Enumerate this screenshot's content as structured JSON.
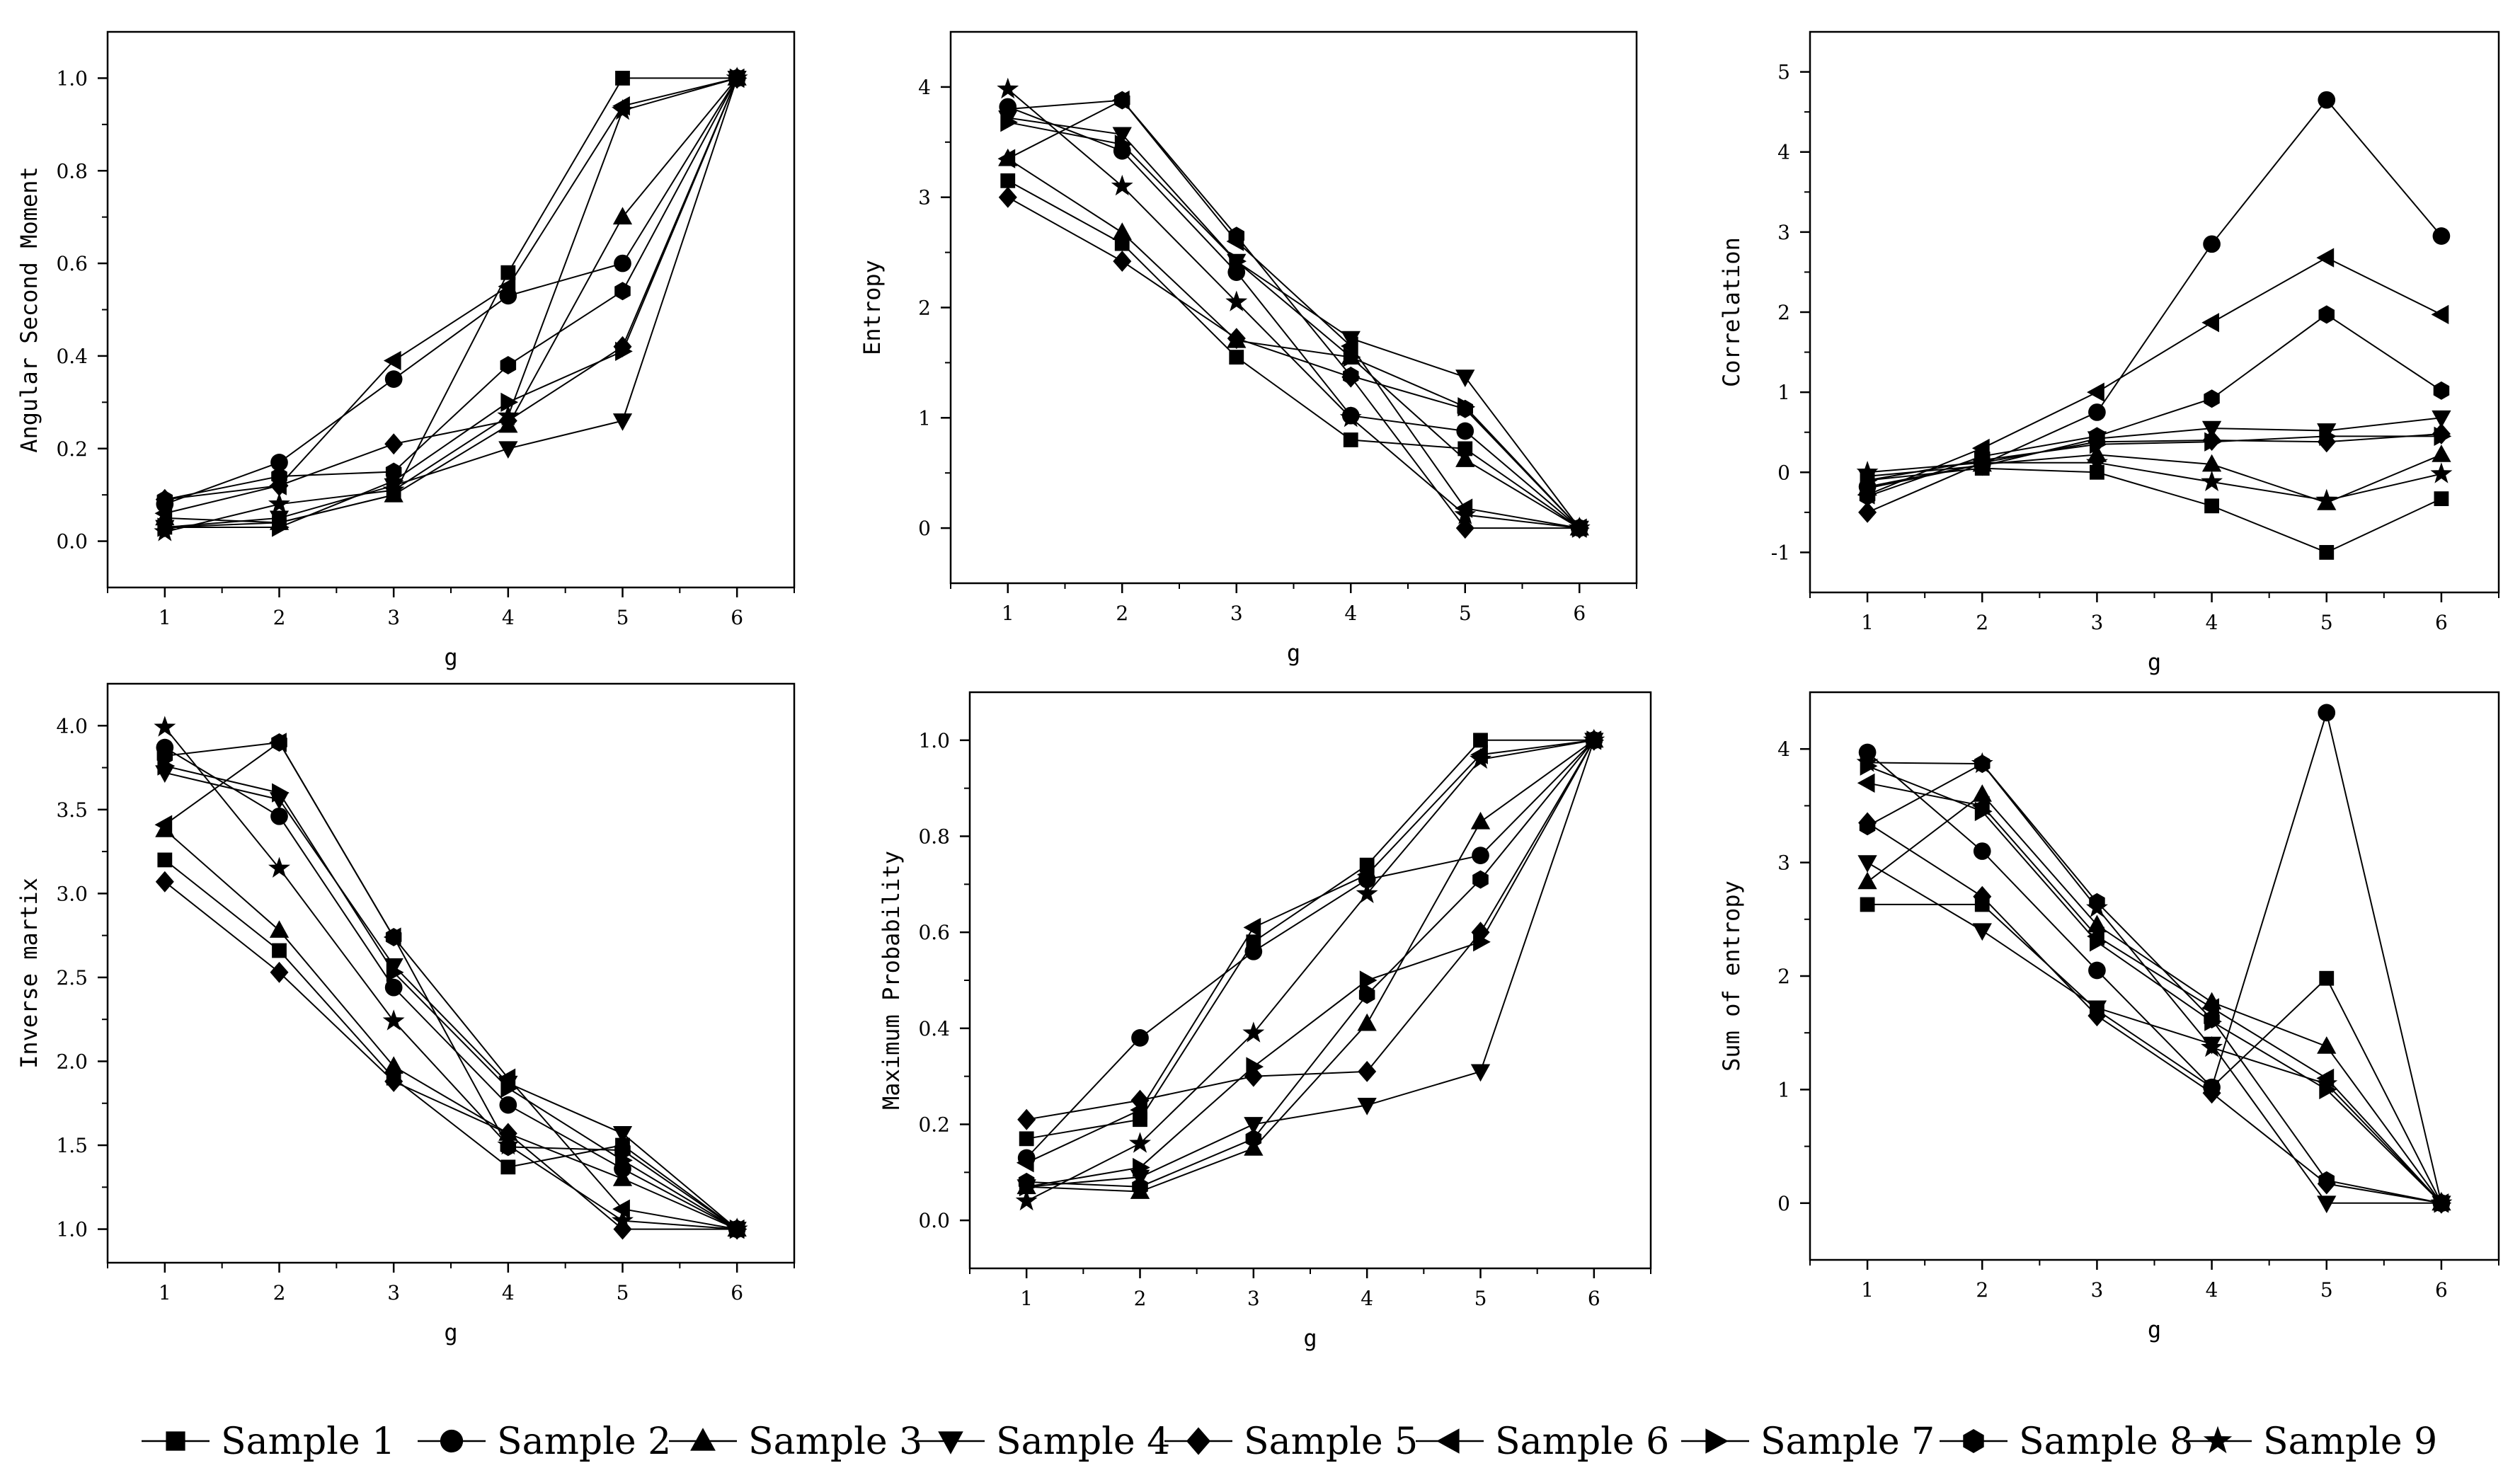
{
  "series_names": [
    "Sample 1",
    "Sample 2",
    "Sample 3",
    "Sample 4",
    "Sample 5",
    "Sample 6",
    "Sample 7",
    "Sample 8",
    "Sample 9"
  ],
  "markers": [
    "square",
    "circle",
    "triangle-up",
    "triangle-down",
    "diamond",
    "triangle-left",
    "triangle-right",
    "hexagon",
    "star"
  ],
  "colors": {
    "line": "#000000",
    "frame": "#000000",
    "background": "#ffffff"
  },
  "chart_data": [
    {
      "type": "line",
      "xlabel": "g",
      "ylabel": "Angular Second Moment",
      "x": [
        1,
        2,
        3,
        4,
        5,
        6
      ],
      "xlim": [
        0.5,
        6.5
      ],
      "ylim": [
        -0.1,
        1.1
      ],
      "yticks": [
        0.0,
        0.2,
        0.4,
        0.6,
        0.8,
        1.0
      ],
      "ytick_labels": [
        "0.0",
        "0.2",
        "0.4",
        "0.6",
        "0.8",
        "1.0"
      ],
      "series": [
        {
          "name": "Sample 1",
          "values": [
            0.03,
            0.04,
            0.1,
            0.58,
            1.0,
            1.0
          ]
        },
        {
          "name": "Sample 2",
          "values": [
            0.08,
            0.17,
            0.35,
            0.53,
            0.6,
            1.0
          ]
        },
        {
          "name": "Sample 3",
          "values": [
            0.05,
            0.04,
            0.1,
            0.25,
            0.7,
            1.0
          ]
        },
        {
          "name": "Sample 4",
          "values": [
            0.03,
            0.05,
            0.12,
            0.2,
            0.26,
            1.0
          ]
        },
        {
          "name": "Sample 5",
          "values": [
            0.09,
            0.12,
            0.21,
            0.26,
            0.42,
            1.0
          ]
        },
        {
          "name": "Sample 6",
          "values": [
            0.06,
            0.12,
            0.39,
            0.55,
            0.94,
            1.0
          ]
        },
        {
          "name": "Sample 7",
          "values": [
            0.03,
            0.03,
            0.13,
            0.3,
            0.41,
            1.0
          ]
        },
        {
          "name": "Sample 8",
          "values": [
            0.09,
            0.14,
            0.15,
            0.38,
            0.54,
            1.0
          ]
        },
        {
          "name": "Sample 9",
          "values": [
            0.02,
            0.08,
            0.11,
            0.27,
            0.93,
            1.0
          ]
        }
      ]
    },
    {
      "type": "line",
      "xlabel": "g",
      "ylabel": "Entropy",
      "x": [
        1,
        2,
        3,
        4,
        5,
        6
      ],
      "xlim": [
        0.5,
        6.5
      ],
      "ylim": [
        -0.5,
        4.5
      ],
      "yticks": [
        0,
        1,
        2,
        3,
        4
      ],
      "ytick_labels": [
        "0",
        "1",
        "2",
        "3",
        "4"
      ],
      "series": [
        {
          "name": "Sample 1",
          "values": [
            3.15,
            2.58,
            1.55,
            0.8,
            0.72,
            0.0
          ]
        },
        {
          "name": "Sample 2",
          "values": [
            3.82,
            3.42,
            2.32,
            1.02,
            0.88,
            0.0
          ]
        },
        {
          "name": "Sample 3",
          "values": [
            3.35,
            2.68,
            1.7,
            1.55,
            0.62,
            0.0
          ]
        },
        {
          "name": "Sample 4",
          "values": [
            3.72,
            3.57,
            2.42,
            1.72,
            1.37,
            0.0
          ]
        },
        {
          "name": "Sample 5",
          "values": [
            3.0,
            2.42,
            1.72,
            1.37,
            0.0,
            0.0
          ]
        },
        {
          "name": "Sample 6",
          "values": [
            3.35,
            3.88,
            2.6,
            1.65,
            0.18,
            0.0
          ]
        },
        {
          "name": "Sample 7",
          "values": [
            3.68,
            3.48,
            2.42,
            1.55,
            1.1,
            0.0
          ]
        },
        {
          "name": "Sample 8",
          "values": [
            3.8,
            3.88,
            2.65,
            1.38,
            1.08,
            0.0
          ]
        },
        {
          "name": "Sample 9",
          "values": [
            3.98,
            3.1,
            2.05,
            1.0,
            0.12,
            0.0
          ]
        }
      ]
    },
    {
      "type": "line",
      "xlabel": "g",
      "ylabel": "Correlation",
      "x": [
        1,
        2,
        3,
        4,
        5,
        6
      ],
      "xlim": [
        0.5,
        6.5
      ],
      "ylim": [
        -1.5,
        5.5
      ],
      "yticks": [
        -1,
        0,
        1,
        2,
        3,
        4,
        5
      ],
      "ytick_labels": [
        "-1",
        "0",
        "1",
        "2",
        "3",
        "4",
        "5"
      ],
      "series": [
        {
          "name": "Sample 1",
          "values": [
            -0.1,
            0.05,
            0.0,
            -0.42,
            -1.0,
            -0.33
          ]
        },
        {
          "name": "Sample 2",
          "values": [
            -0.18,
            0.1,
            0.75,
            2.85,
            4.65,
            2.95
          ]
        },
        {
          "name": "Sample 3",
          "values": [
            -0.2,
            0.1,
            0.22,
            0.1,
            -0.38,
            0.22
          ]
        },
        {
          "name": "Sample 4",
          "values": [
            -0.05,
            0.08,
            0.42,
            0.55,
            0.52,
            0.68
          ]
        },
        {
          "name": "Sample 5",
          "values": [
            -0.5,
            0.12,
            0.38,
            0.4,
            0.38,
            0.48
          ]
        },
        {
          "name": "Sample 6",
          "values": [
            -0.28,
            0.3,
            1.0,
            1.87,
            2.68,
            1.97
          ]
        },
        {
          "name": "Sample 7",
          "values": [
            -0.1,
            0.15,
            0.35,
            0.38,
            0.45,
            0.45
          ]
        },
        {
          "name": "Sample 8",
          "values": [
            -0.3,
            0.2,
            0.45,
            0.92,
            1.97,
            1.02
          ]
        },
        {
          "name": "Sample 9",
          "values": [
            0.0,
            0.12,
            0.12,
            -0.12,
            -0.35,
            -0.02
          ]
        }
      ]
    },
    {
      "type": "line",
      "xlabel": "g",
      "ylabel": "Inverse martix",
      "x": [
        1,
        2,
        3,
        4,
        5,
        6
      ],
      "xlim": [
        0.5,
        6.5
      ],
      "ylim": [
        0.8,
        4.25
      ],
      "yticks": [
        1.0,
        1.5,
        2.0,
        2.5,
        3.0,
        3.5,
        4.0
      ],
      "ytick_labels": [
        "1.0",
        "1.5",
        "2.0",
        "2.5",
        "3.0",
        "3.5",
        "4.0"
      ],
      "series": [
        {
          "name": "Sample 1",
          "values": [
            3.2,
            2.66,
            1.9,
            1.37,
            1.5,
            1.0
          ]
        },
        {
          "name": "Sample 2",
          "values": [
            3.87,
            3.46,
            2.44,
            1.74,
            1.36,
            1.0
          ]
        },
        {
          "name": "Sample 3",
          "values": [
            3.38,
            2.78,
            1.97,
            1.57,
            1.3,
            1.0
          ]
        },
        {
          "name": "Sample 4",
          "values": [
            3.72,
            3.56,
            2.57,
            1.87,
            1.57,
            1.0
          ]
        },
        {
          "name": "Sample 5",
          "values": [
            3.07,
            2.53,
            1.88,
            1.57,
            1.0,
            1.0
          ]
        },
        {
          "name": "Sample 6",
          "values": [
            3.41,
            3.9,
            2.74,
            1.9,
            1.12,
            1.0
          ]
        },
        {
          "name": "Sample 7",
          "values": [
            3.76,
            3.6,
            2.53,
            1.84,
            1.41,
            1.0
          ]
        },
        {
          "name": "Sample 8",
          "values": [
            3.82,
            3.9,
            2.74,
            1.49,
            1.47,
            1.0
          ]
        },
        {
          "name": "Sample 9",
          "values": [
            3.99,
            3.15,
            2.24,
            1.5,
            1.05,
            1.0
          ]
        }
      ]
    },
    {
      "type": "line",
      "xlabel": "g",
      "ylabel": "Maximum Probability",
      "x": [
        1,
        2,
        3,
        4,
        5,
        6
      ],
      "xlim": [
        0.5,
        6.5
      ],
      "ylim": [
        -0.1,
        1.1
      ],
      "yticks": [
        0.0,
        0.2,
        0.4,
        0.6,
        0.8,
        1.0
      ],
      "ytick_labels": [
        "0.0",
        "0.2",
        "0.4",
        "0.6",
        "0.8",
        "1.0"
      ],
      "series": [
        {
          "name": "Sample 1",
          "values": [
            0.17,
            0.21,
            0.58,
            0.74,
            1.0,
            1.0
          ]
        },
        {
          "name": "Sample 2",
          "values": [
            0.13,
            0.38,
            0.56,
            0.71,
            0.76,
            1.0
          ]
        },
        {
          "name": "Sample 3",
          "values": [
            0.07,
            0.06,
            0.15,
            0.41,
            0.83,
            1.0
          ]
        },
        {
          "name": "Sample 4",
          "values": [
            0.07,
            0.09,
            0.2,
            0.24,
            0.31,
            1.0
          ]
        },
        {
          "name": "Sample 5",
          "values": [
            0.21,
            0.25,
            0.3,
            0.31,
            0.6,
            1.0
          ]
        },
        {
          "name": "Sample 6",
          "values": [
            0.12,
            0.23,
            0.61,
            0.72,
            0.97,
            1.0
          ]
        },
        {
          "name": "Sample 7",
          "values": [
            0.07,
            0.11,
            0.32,
            0.5,
            0.58,
            1.0
          ]
        },
        {
          "name": "Sample 8",
          "values": [
            0.08,
            0.07,
            0.17,
            0.47,
            0.71,
            1.0
          ]
        },
        {
          "name": "Sample 9",
          "values": [
            0.04,
            0.16,
            0.39,
            0.68,
            0.96,
            1.0
          ]
        }
      ]
    },
    {
      "type": "line",
      "xlabel": "g",
      "ylabel": "Sum of entropy",
      "x": [
        1,
        2,
        3,
        4,
        5,
        6
      ],
      "xlim": [
        0.5,
        6.5
      ],
      "ylim": [
        -0.5,
        4.5
      ],
      "yticks": [
        0,
        1,
        2,
        3,
        4
      ],
      "ytick_labels": [
        "0",
        "1",
        "2",
        "3",
        "4"
      ],
      "series": [
        {
          "name": "Sample 1",
          "values": [
            2.63,
            2.63,
            1.7,
            1.02,
            1.98,
            0.0
          ]
        },
        {
          "name": "Sample 2",
          "values": [
            3.97,
            3.1,
            2.05,
            1.02,
            4.32,
            0.0
          ]
        },
        {
          "name": "Sample 3",
          "values": [
            2.83,
            3.6,
            2.45,
            1.77,
            1.38,
            0.0
          ]
        },
        {
          "name": "Sample 4",
          "values": [
            3.0,
            2.4,
            1.72,
            1.4,
            0.0,
            0.0
          ]
        },
        {
          "name": "Sample 5",
          "values": [
            3.35,
            2.7,
            1.65,
            0.97,
            0.17,
            0.0
          ]
        },
        {
          "name": "Sample 6",
          "values": [
            3.7,
            3.5,
            2.35,
            1.72,
            1.1,
            0.0
          ]
        },
        {
          "name": "Sample 7",
          "values": [
            3.85,
            3.45,
            2.3,
            1.6,
            1.0,
            0.0
          ]
        },
        {
          "name": "Sample 8",
          "values": [
            3.32,
            3.87,
            2.65,
            1.62,
            0.2,
            0.0
          ]
        },
        {
          "name": "Sample 9",
          "values": [
            3.88,
            3.87,
            2.6,
            1.37,
            1.05,
            0.0
          ]
        }
      ]
    }
  ]
}
